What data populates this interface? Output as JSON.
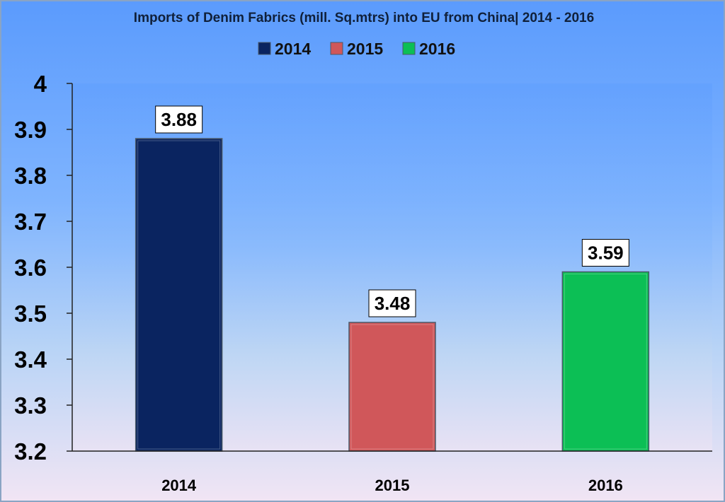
{
  "chart_data": {
    "type": "bar",
    "title": "Imports of Denim Fabrics (mill. Sq.mtrs) into EU from China| 2014 - 2016",
    "categories": [
      "2014",
      "2015",
      "2016"
    ],
    "values": [
      3.88,
      3.48,
      3.59
    ],
    "data_labels": [
      "3.88",
      "3.48",
      "3.59"
    ],
    "colors": [
      "#0a2460",
      "#d0575a",
      "#0cbf55"
    ],
    "legend": {
      "placement": "top-center",
      "entries": [
        "2014",
        "2015",
        "2016"
      ]
    },
    "ylim": [
      3.2,
      4
    ],
    "yticks": [
      "3.2",
      "3.3",
      "3.4",
      "3.5",
      "3.6",
      "3.7",
      "3.8",
      "3.9",
      "4"
    ],
    "grid": false,
    "background": "gradient blue to lavender"
  }
}
